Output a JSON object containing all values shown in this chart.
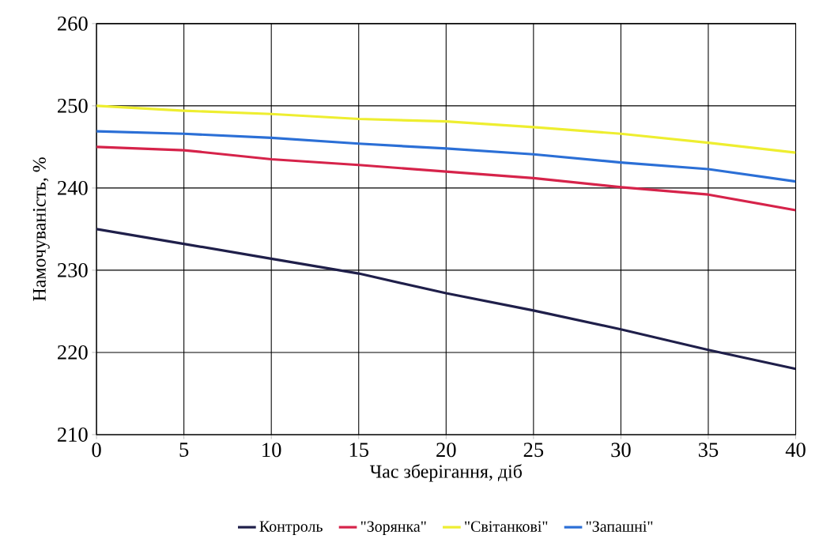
{
  "chart_data": {
    "type": "line",
    "xlabel": "Час зберігання, діб",
    "ylabel": "Намочуваність, %",
    "x": [
      0,
      5,
      10,
      15,
      20,
      25,
      30,
      35,
      40
    ],
    "series": [
      {
        "name": "Контроль",
        "color": "#1f1f4a",
        "values": [
          235.0,
          233.2,
          231.4,
          229.6,
          227.2,
          225.1,
          222.8,
          220.3,
          218.0
        ]
      },
      {
        "name": "\"Зорянка\"",
        "color": "#d6234a",
        "values": [
          245.0,
          244.6,
          243.5,
          242.8,
          242.0,
          241.2,
          240.1,
          239.2,
          237.3
        ]
      },
      {
        "name": "\"Світанкові\"",
        "color": "#eeee30",
        "values": [
          250.0,
          249.4,
          249.0,
          248.4,
          248.1,
          247.4,
          246.6,
          245.5,
          244.3
        ]
      },
      {
        "name": "\"Запашні\"",
        "color": "#2b6fd6",
        "values": [
          246.9,
          246.6,
          246.1,
          245.4,
          244.8,
          244.1,
          243.1,
          242.3,
          240.8
        ]
      }
    ],
    "xlim": [
      0,
      40
    ],
    "ylim": [
      210,
      260
    ],
    "xticks": [
      0,
      5,
      10,
      15,
      20,
      25,
      30,
      35,
      40
    ],
    "yticks": [
      210,
      220,
      230,
      240,
      250,
      260
    ],
    "grid": true,
    "legend": "bottom",
    "marker": "none",
    "line_style": "solid"
  }
}
